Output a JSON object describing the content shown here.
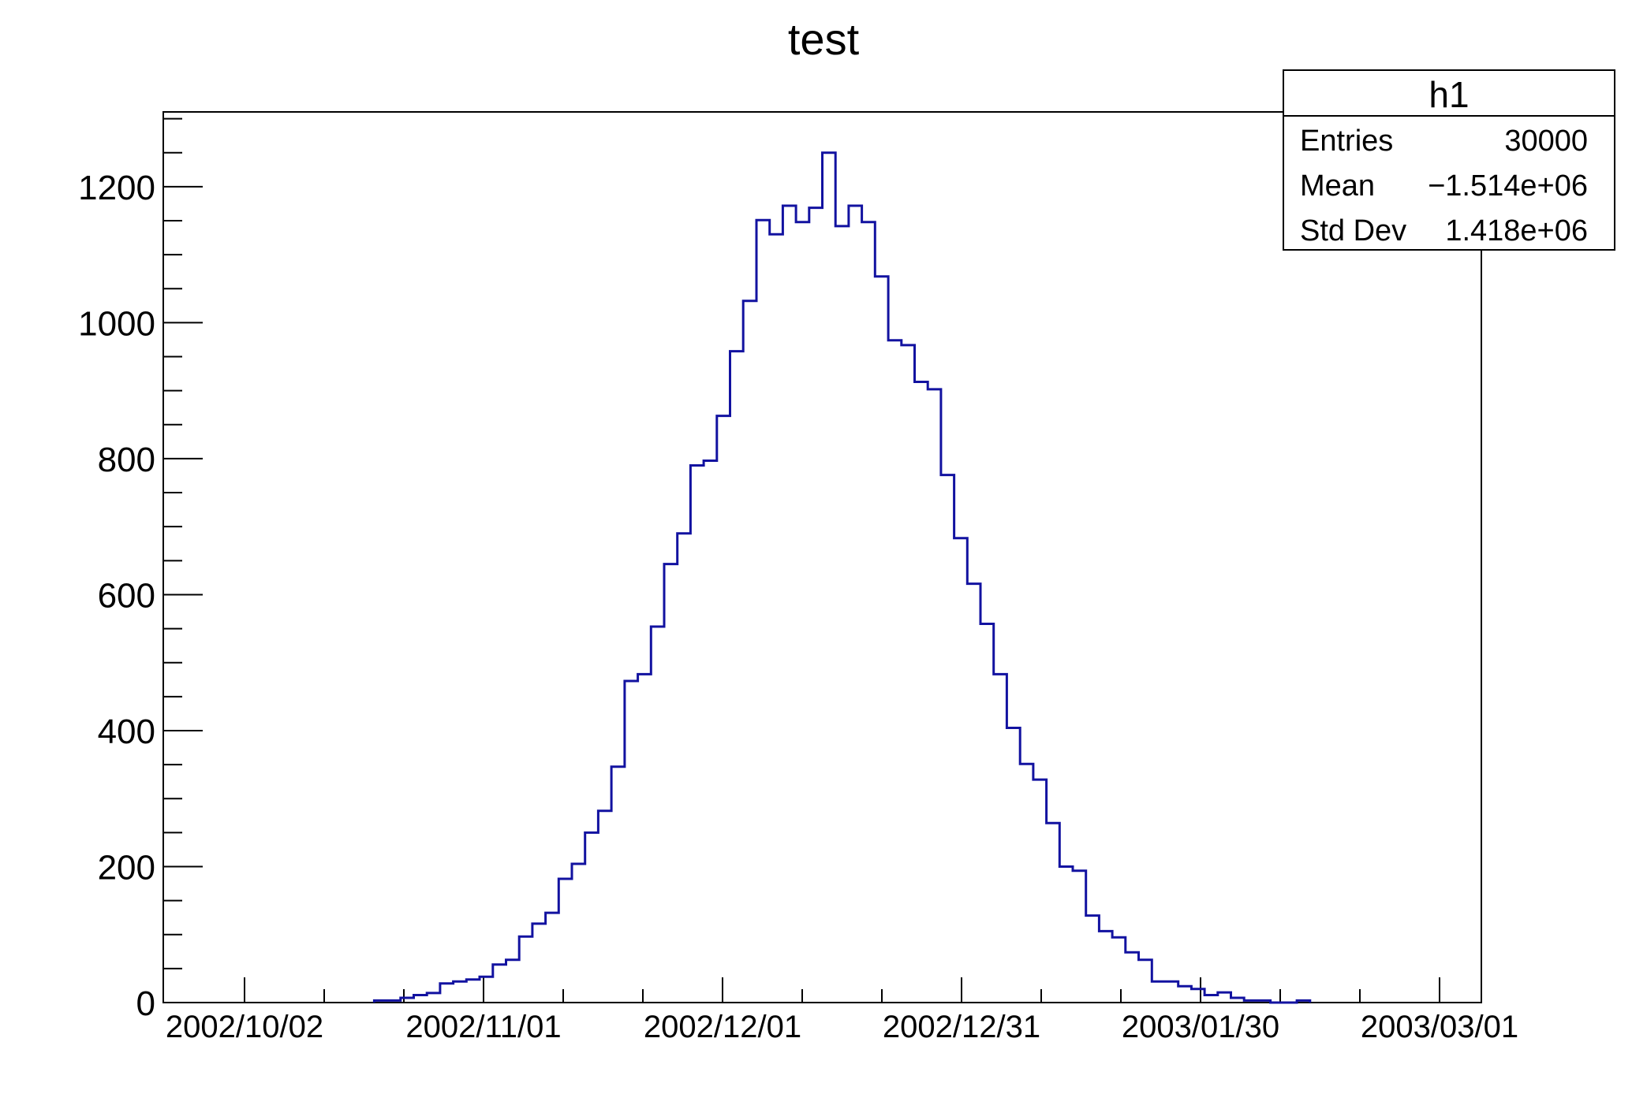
{
  "page": {
    "background": "#ffffff"
  },
  "chart_data": {
    "type": "bar",
    "style": "step-histogram-outline",
    "title": "test",
    "xlabel": "",
    "ylabel": "",
    "grid": false,
    "legend": "none",
    "line_color": "#1212a0",
    "frame_color": "#000000",
    "x_tick_labels": [
      "2002/10/02",
      "2002/11/01",
      "2002/12/01",
      "2002/12/31",
      "2003/01/30",
      "2003/03/01"
    ],
    "x_minor_ticks_per_interval": 2,
    "y_ticks": [
      0,
      200,
      400,
      600,
      800,
      1000,
      1200
    ],
    "y_minor_step": 50,
    "ylim": [
      0,
      1310
    ],
    "n_bins": 100,
    "bins": [
      0,
      0,
      0,
      0,
      0,
      0,
      0,
      0,
      0,
      0,
      0,
      0,
      0,
      0,
      0,
      0,
      3,
      3,
      7,
      11,
      14,
      28,
      31,
      34,
      38,
      56,
      63,
      97,
      116,
      132,
      182,
      204,
      250,
      282,
      347,
      473,
      483,
      553,
      645,
      690,
      790,
      797,
      863,
      958,
      1032,
      1151,
      1130,
      1172,
      1148,
      1169,
      1250,
      1142,
      1172,
      1148,
      1068,
      974,
      967,
      913,
      902,
      776,
      683,
      616,
      557,
      483,
      404,
      351,
      328,
      264,
      200,
      194,
      128,
      105,
      96,
      74,
      63,
      31,
      31,
      24,
      20,
      11,
      15,
      7,
      3,
      3,
      0,
      0,
      3,
      0,
      0,
      0,
      0,
      0,
      0,
      0,
      0,
      0,
      0,
      0,
      0,
      0
    ]
  },
  "stats_box": {
    "title": "h1",
    "rows": [
      {
        "label": "Entries",
        "value": "30000"
      },
      {
        "label": "Mean",
        "value": "−1.514e+06"
      },
      {
        "label": "Std Dev",
        "value": "1.418e+06"
      }
    ]
  }
}
